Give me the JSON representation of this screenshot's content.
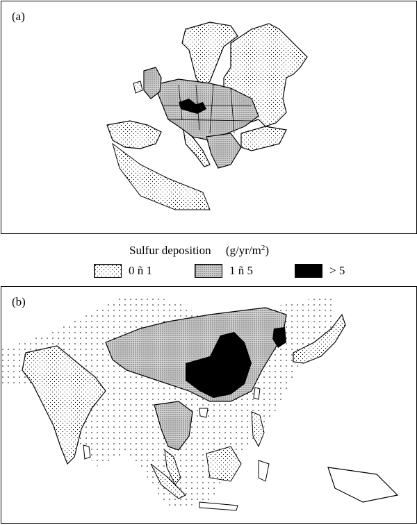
{
  "panel_a": {
    "label": "(a)"
  },
  "panel_b": {
    "label": "(b)"
  },
  "legend": {
    "title": "Sulfur deposition",
    "unit": "(g/yr/m",
    "unit_sup": "2",
    "unit_close": ")",
    "classes": [
      {
        "label": "0 ñ 1",
        "pattern": "sparse-dots"
      },
      {
        "label": "1 ñ 5",
        "pattern": "dense-dots"
      },
      {
        "label": "> 5",
        "pattern": "solid-black"
      }
    ]
  },
  "colors": {
    "ink": "#000000",
    "paper": "#ffffff",
    "medium": "#bdbdbd"
  }
}
